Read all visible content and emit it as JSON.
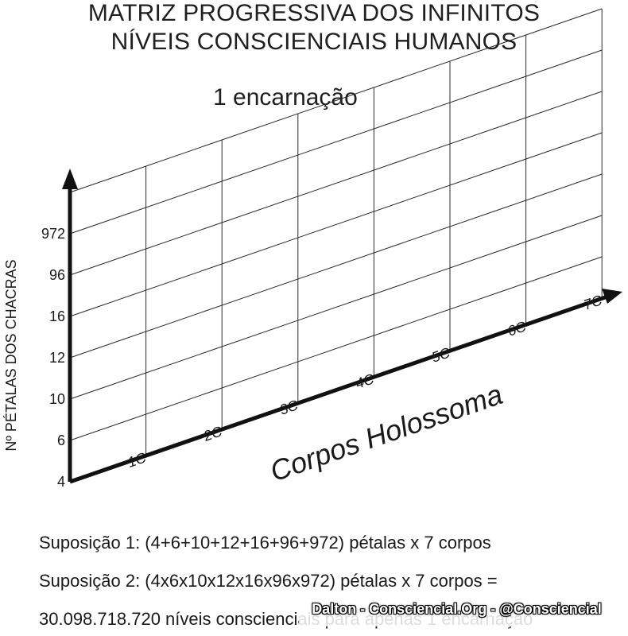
{
  "title": {
    "line1": "MATRIZ PROGRESSIVA DOS INFINITOS",
    "line2": "NÍVEIS CONSCIENCIAIS HUMANOS"
  },
  "subtitle": "1 encarnação",
  "chart_data": {
    "type": "grid-diagram",
    "ylabel": "Nº PÉTALAS DOS CHACRAS",
    "xlabel": "Corpos Holossoma",
    "y_ticks": [
      "4",
      "6",
      "10",
      "12",
      "16",
      "96",
      "972"
    ],
    "x_ticks": [
      "1C",
      "2C",
      "3C",
      "4C",
      "5C",
      "6C",
      "7C"
    ],
    "grid": true
  },
  "suppositions": [
    "Suposição 1: (4+6+10+12+16+96+972) pétalas x 7 corpos",
    "Suposição 2: (4x6x10x12x16x96x972) pétalas x 7 corpos =",
    "30.098.718.720 níveis conscienciais para apenas 1 encarnação"
  ],
  "watermark": "Dalton - Consciencial.Org - @Consciencial",
  "colors": {
    "ink": "#1a1a1a",
    "grid": "#2a2a2a",
    "background": "#ffffff"
  }
}
